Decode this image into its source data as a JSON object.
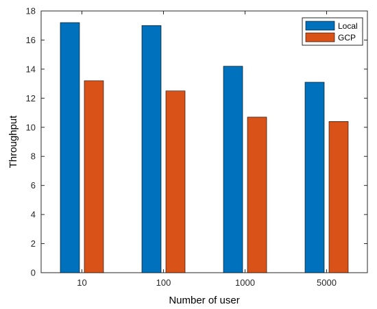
{
  "chart_data": {
    "type": "bar",
    "title": "",
    "xlabel": "Number of user",
    "ylabel": "Throughput",
    "categories": [
      "10",
      "100",
      "1000",
      "5000"
    ],
    "series": [
      {
        "name": "Local",
        "values": [
          17.2,
          17.0,
          14.2,
          13.1
        ],
        "color": "#0072BD"
      },
      {
        "name": "GCP",
        "values": [
          13.2,
          12.5,
          10.7,
          10.4
        ],
        "color": "#D95319"
      }
    ],
    "ylim": [
      0,
      18
    ],
    "yticks": [
      "0",
      "2",
      "4",
      "6",
      "8",
      "10",
      "12",
      "14",
      "16",
      "18"
    ],
    "grid": false,
    "legend_position": "top-right"
  }
}
